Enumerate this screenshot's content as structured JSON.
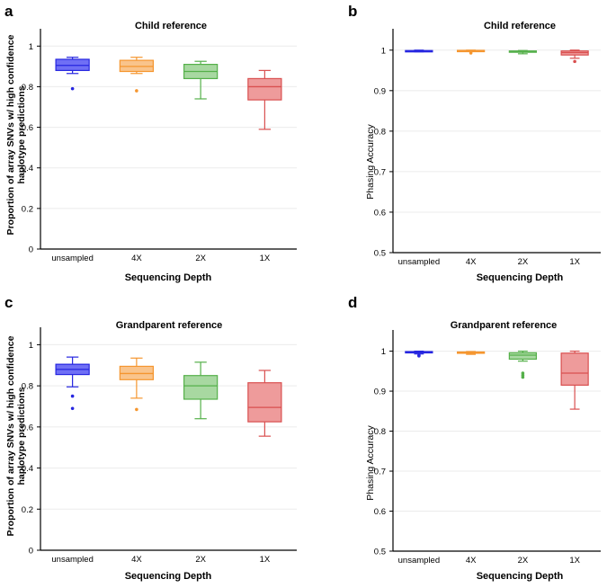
{
  "chart_data": [
    {
      "panel": "a",
      "type": "box",
      "title": "Child reference",
      "xlabel": "Sequencing Depth",
      "ylabel": [
        "Proportion of array SNVs w/ high confidence",
        "haplotype predictions"
      ],
      "ylim": [
        0,
        1.05
      ],
      "yticks": [
        0,
        0.2,
        0.4,
        0.6,
        0.8,
        1
      ],
      "ytick_labels": [
        "0",
        "0.2",
        "0.4",
        "0.6",
        "0.8",
        "1"
      ],
      "categories": [
        "unsampled",
        "4X",
        "2X",
        "1X"
      ],
      "boxes": [
        {
          "min": 0.865,
          "q1": 0.88,
          "median": 0.905,
          "q3": 0.935,
          "max": 0.945,
          "outliers": [
            0.79
          ]
        },
        {
          "min": 0.865,
          "q1": 0.875,
          "median": 0.9,
          "q3": 0.93,
          "max": 0.945,
          "outliers": [
            0.78
          ]
        },
        {
          "min": 0.74,
          "q1": 0.84,
          "median": 0.875,
          "q3": 0.91,
          "max": 0.925,
          "outliers": []
        },
        {
          "min": 0.59,
          "q1": 0.735,
          "median": 0.8,
          "q3": 0.84,
          "max": 0.88,
          "outliers": []
        }
      ]
    },
    {
      "panel": "b",
      "type": "box",
      "title": "Child reference",
      "xlabel": "Sequencing Depth",
      "ylabel": [
        "Phasing Accuracy"
      ],
      "ylim": [
        0.5,
        1.035
      ],
      "yticks": [
        0.5,
        0.6,
        0.7,
        0.8,
        0.9,
        1
      ],
      "ytick_labels": [
        "0.5",
        "0.6",
        "0.7",
        "0.8",
        "0.9",
        "1"
      ],
      "categories": [
        "unsampled",
        "4X",
        "2X",
        "1X"
      ],
      "boxes": [
        {
          "min": 0.996,
          "q1": 0.997,
          "median": 0.998,
          "q3": 0.999,
          "max": 1.0,
          "outliers": []
        },
        {
          "min": 0.997,
          "q1": 0.998,
          "median": 0.999,
          "q3": 0.9995,
          "max": 1.0,
          "outliers": [
            0.993
          ]
        },
        {
          "min": 0.991,
          "q1": 0.995,
          "median": 0.997,
          "q3": 0.998,
          "max": 0.999,
          "outliers": []
        },
        {
          "min": 0.98,
          "q1": 0.988,
          "median": 0.994,
          "q3": 0.998,
          "max": 1.0,
          "outliers": [
            0.972
          ]
        }
      ]
    },
    {
      "panel": "c",
      "type": "box",
      "title": "Grandparent reference",
      "xlabel": "Sequencing Depth",
      "ylabel": [
        "Proportion of array SNVs w/ high confidence",
        "haplotype predictions"
      ],
      "ylim": [
        0,
        1.05
      ],
      "yticks": [
        0,
        0.2,
        0.4,
        0.6,
        0.8,
        1
      ],
      "ytick_labels": [
        "0",
        "0.2",
        "0.4",
        "0.6",
        "0.8",
        "1"
      ],
      "categories": [
        "unsampled",
        "4X",
        "2X",
        "1X"
      ],
      "boxes": [
        {
          "min": 0.795,
          "q1": 0.855,
          "median": 0.88,
          "q3": 0.905,
          "max": 0.94,
          "outliers": [
            0.75,
            0.69
          ]
        },
        {
          "min": 0.74,
          "q1": 0.83,
          "median": 0.86,
          "q3": 0.895,
          "max": 0.935,
          "outliers": [
            0.685
          ]
        },
        {
          "min": 0.64,
          "q1": 0.735,
          "median": 0.8,
          "q3": 0.85,
          "max": 0.915,
          "outliers": []
        },
        {
          "min": 0.555,
          "q1": 0.625,
          "median": 0.695,
          "q3": 0.815,
          "max": 0.875,
          "outliers": []
        }
      ]
    },
    {
      "panel": "d",
      "type": "box",
      "title": "Grandparent reference",
      "xlabel": "Sequencing Depth",
      "ylabel": [
        "Phasing Accuracy"
      ],
      "ylim": [
        0.5,
        1.035
      ],
      "yticks": [
        0.5,
        0.6,
        0.7,
        0.8,
        0.9,
        1
      ],
      "ytick_labels": [
        "0.5",
        "0.6",
        "0.7",
        "0.8",
        "0.9",
        "1"
      ],
      "categories": [
        "unsampled",
        "4X",
        "2X",
        "1X"
      ],
      "boxes": [
        {
          "min": 0.993,
          "q1": 0.996,
          "median": 0.998,
          "q3": 0.999,
          "max": 1.0,
          "outliers": [
            0.99,
            0.988
          ]
        },
        {
          "min": 0.992,
          "q1": 0.995,
          "median": 0.997,
          "q3": 0.998,
          "max": 0.999,
          "outliers": []
        },
        {
          "min": 0.975,
          "q1": 0.98,
          "median": 0.99,
          "q3": 0.996,
          "max": 1.0,
          "outliers": [
            0.945,
            0.94,
            0.935
          ]
        },
        {
          "min": 0.855,
          "q1": 0.915,
          "median": 0.945,
          "q3": 0.995,
          "max": 1.0,
          "outliers": []
        }
      ]
    }
  ],
  "series_colors": [
    {
      "fill": "#6f6ff5",
      "stroke": "#2626e0"
    },
    {
      "fill": "#f9c48c",
      "stroke": "#f5962f"
    },
    {
      "fill": "#a8d8a1",
      "stroke": "#55b04a"
    },
    {
      "fill": "#ee9b9b",
      "stroke": "#d94f4f"
    }
  ],
  "axis_color": "#000000",
  "grid_color": "#ebebeb"
}
